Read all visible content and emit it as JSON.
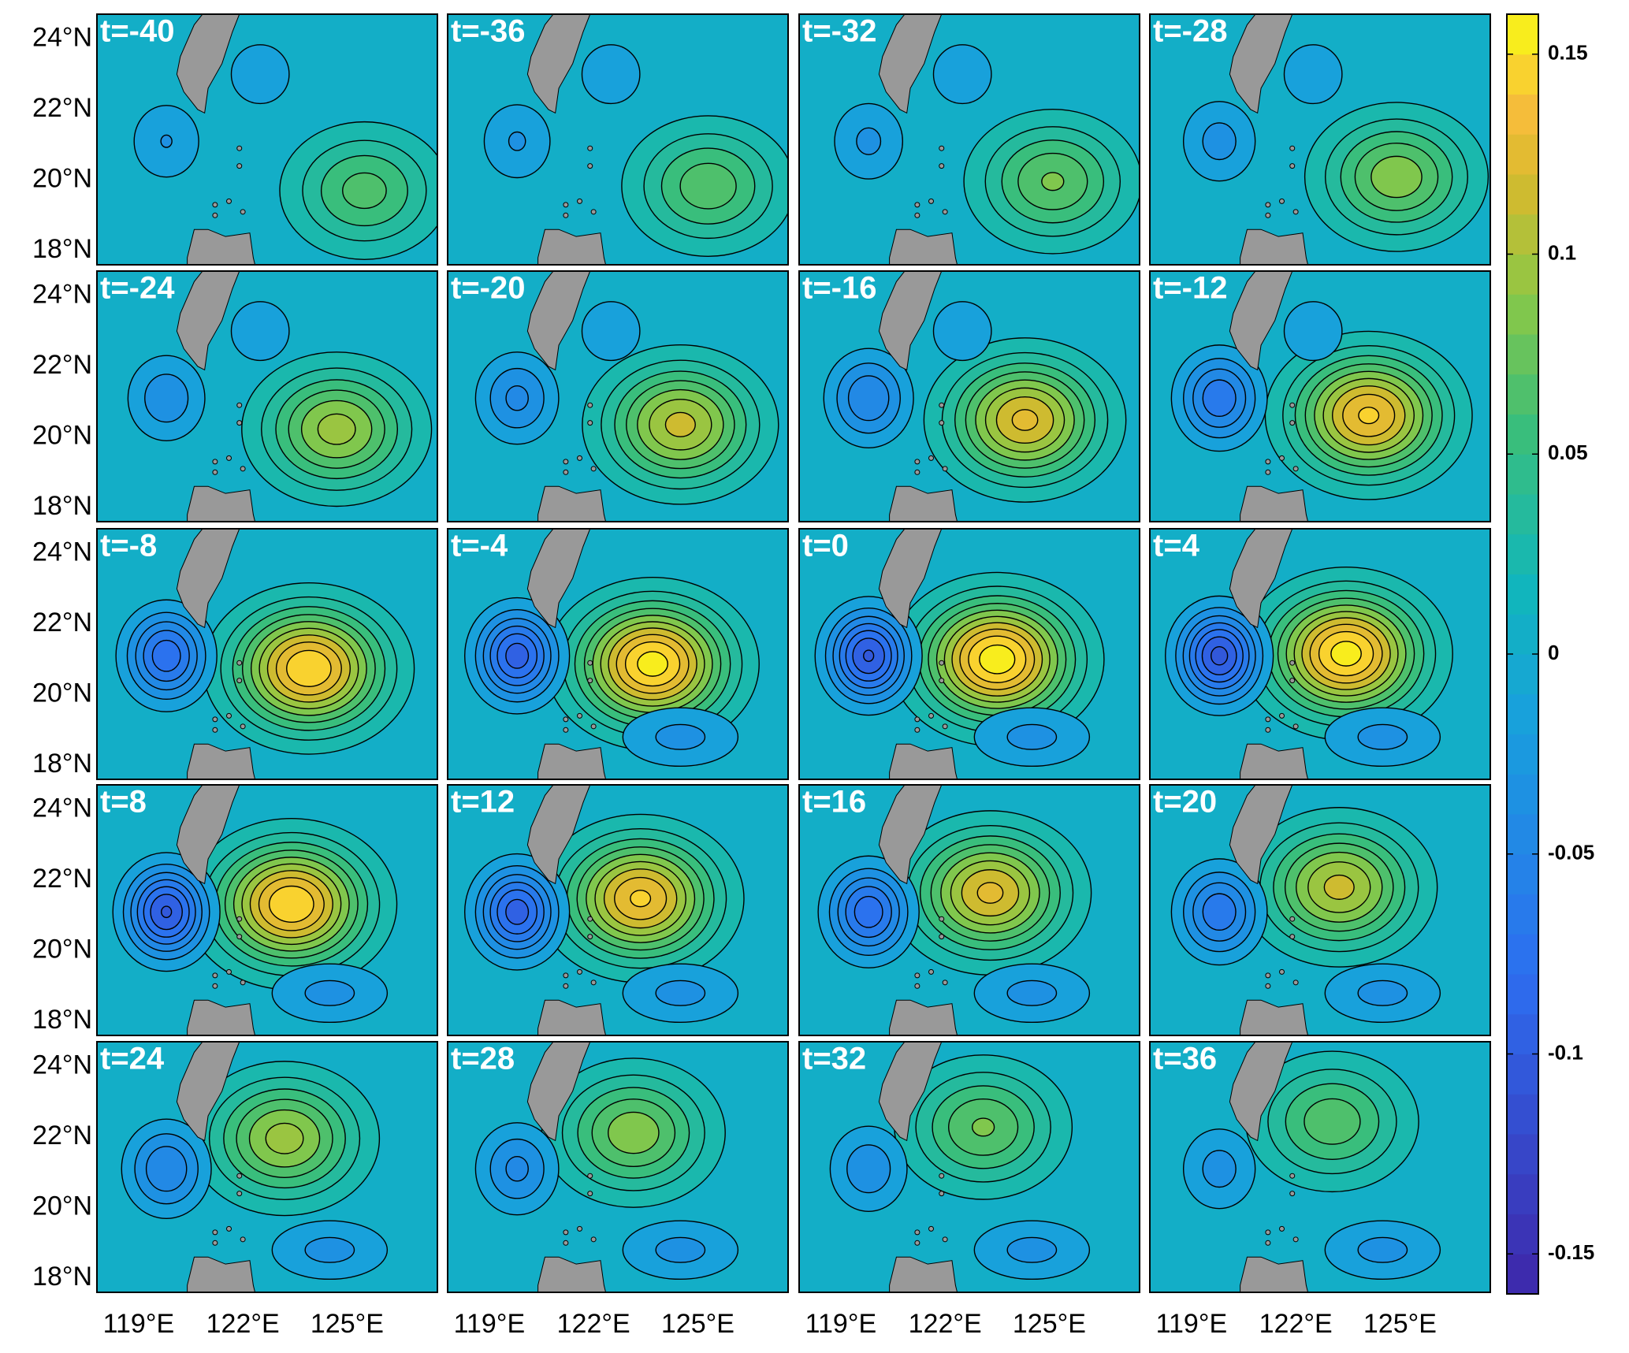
{
  "panels": [
    "t=-40",
    "t=-36",
    "t=-32",
    "t=-28",
    "t=-24",
    "t=-20",
    "t=-16",
    "t=-12",
    "t=-8",
    "t=-4",
    "t=0",
    "t=4",
    "t=8",
    "t=12",
    "t=16",
    "t=20",
    "t=24",
    "t=28",
    "t=32",
    "t=36"
  ],
  "map": {
    "lonlim": [
      117.8,
      127.6
    ],
    "latlim": [
      17.6,
      24.7
    ],
    "lat_ticks": [
      {
        "value": 24,
        "label": "24°N"
      },
      {
        "value": 22,
        "label": "22°N"
      },
      {
        "value": 20,
        "label": "20°N"
      },
      {
        "value": 18,
        "label": "18°N"
      }
    ],
    "lon_ticks": [
      {
        "value": 119,
        "label": "119°E"
      },
      {
        "value": 122,
        "label": "122°E"
      },
      {
        "value": 125,
        "label": "125°E"
      }
    ]
  },
  "colorbar": {
    "lim": [
      -0.16,
      0.16
    ],
    "ticks": [
      0.15,
      0.1,
      0.05,
      0,
      -0.05,
      -0.1,
      -0.15
    ]
  }
}
